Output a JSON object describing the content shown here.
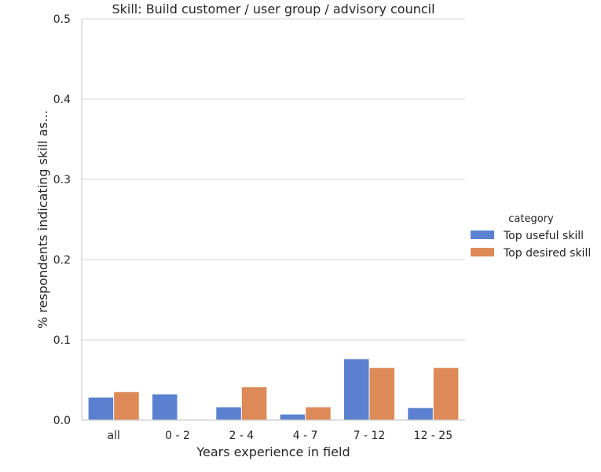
{
  "chart_data": {
    "type": "bar",
    "title": "Skill: Build customer / user group / advisory council",
    "xlabel": "Years experience in field",
    "ylabel": "% respondents indicating skill as...",
    "categories": [
      "all",
      "0 - 2",
      "2 - 4",
      "4 - 7",
      "7 - 12",
      "12 - 25"
    ],
    "ylim": [
      0,
      0.5
    ],
    "yticks": [
      "0.0",
      "0.1",
      "0.2",
      "0.3",
      "0.4",
      "0.5"
    ],
    "grid": "horizontal",
    "legend": {
      "title": "category",
      "placement": "right"
    },
    "series": [
      {
        "name": "Top useful skill",
        "color": "#5b80cf",
        "values": [
          0.028,
          0.032,
          0.016,
          0.007,
          0.076,
          0.015
        ]
      },
      {
        "name": "Top desired skill",
        "color": "#dd8a58",
        "values": [
          0.035,
          0.0,
          0.041,
          0.016,
          0.065,
          0.065
        ]
      }
    ]
  }
}
